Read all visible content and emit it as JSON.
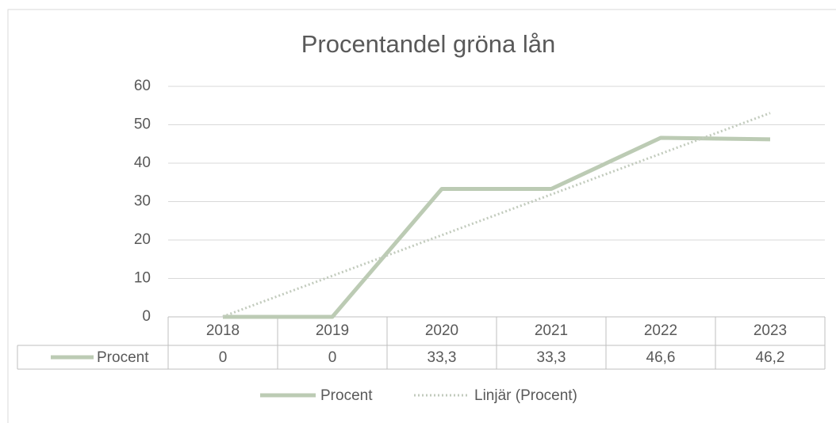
{
  "chart_data": {
    "type": "line",
    "title": "Procentandel gröna lån",
    "categories": [
      "2018",
      "2019",
      "2020",
      "2021",
      "2022",
      "2023"
    ],
    "series": [
      {
        "name": "Procent",
        "color": "#bccbb4",
        "values": [
          0,
          0,
          33.3,
          33.3,
          46.6,
          46.2
        ],
        "value_labels": [
          "0",
          "0",
          "33,3",
          "33,3",
          "46,6",
          "46,2"
        ]
      }
    ],
    "trendline": {
      "name": "Linjär (Procent)",
      "type": "linear",
      "color": "#c2cbbd"
    },
    "ylim": [
      0,
      60
    ],
    "yticks": [
      0,
      10,
      20,
      30,
      40,
      50,
      60
    ],
    "grid": true,
    "data_table": true,
    "legend": "bottom"
  }
}
